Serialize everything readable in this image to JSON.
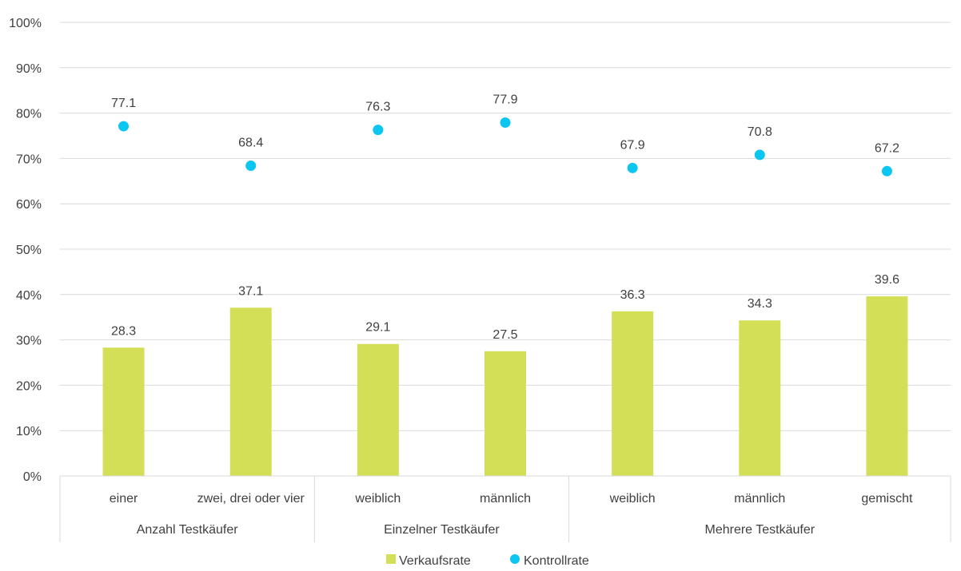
{
  "chart_data": {
    "type": "bar",
    "title": "",
    "xlabel": "",
    "ylabel": "",
    "ylim": [
      0,
      100
    ],
    "y_ticks": [
      "0%",
      "10%",
      "20%",
      "30%",
      "40%",
      "50%",
      "60%",
      "70%",
      "80%",
      "90%",
      "100%"
    ],
    "grid": true,
    "legend_position": "bottom",
    "categories": [
      "einer",
      "zwei, drei oder vier",
      "weiblich",
      "männlich",
      "weiblich",
      "männlich",
      "gemischt"
    ],
    "groups": [
      {
        "label": "Anzahl Testkäufer",
        "span": 2
      },
      {
        "label": "Einzelner Testkäufer",
        "span": 2
      },
      {
        "label": "Mehrere Testkäufer",
        "span": 3
      }
    ],
    "series": [
      {
        "name": "Verkaufsrate",
        "type": "bar",
        "color": "#d4df58",
        "values": [
          28.3,
          37.1,
          29.1,
          27.5,
          36.3,
          34.3,
          39.6
        ]
      },
      {
        "name": "Kontrollrate",
        "type": "scatter",
        "color": "#0bc6f0",
        "values": [
          77.1,
          68.4,
          76.3,
          77.9,
          67.9,
          70.8,
          67.2
        ]
      }
    ]
  }
}
